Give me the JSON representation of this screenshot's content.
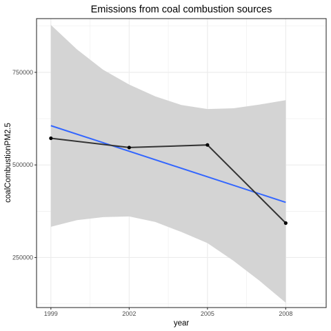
{
  "chart_data": {
    "type": "line",
    "title": "Emissions from coal combustion sources",
    "xlabel": "year",
    "ylabel": "coalCombustionPM2.5",
    "x": [
      1999,
      2002,
      2005,
      2008
    ],
    "x_tick_labels": [
      "1999",
      "2002",
      "2005",
      "2008"
    ],
    "y_ticks": [
      250000,
      500000,
      750000
    ],
    "y_tick_labels": [
      "250000",
      "500000",
      "750000"
    ],
    "xlim": [
      1998.45,
      2009.55
    ],
    "ylim": [
      115000,
      895000
    ],
    "grid": true,
    "series": [
      {
        "values": [
          572000,
          547000,
          554000,
          343000
        ],
        "color": "#333333"
      }
    ],
    "trend_line": {
      "x": [
        1999,
        2008
      ],
      "y": [
        606000,
        399000
      ],
      "color": "#3366FF"
    },
    "confidence_band": {
      "x": [
        1999,
        2000,
        2001,
        2002,
        2003,
        2004,
        2005,
        2006,
        2007,
        2008
      ],
      "upper": [
        878000,
        812000,
        757000,
        717000,
        685000,
        662000,
        651000,
        653000,
        663000,
        675000
      ],
      "lower": [
        333000,
        351000,
        359000,
        361000,
        346000,
        319000,
        289000,
        241000,
        187000,
        128000
      ],
      "color": "#d4d4d4"
    },
    "panel_background": "#ffffff",
    "grid_color": "#ebebeb",
    "border_color": "#333333"
  }
}
